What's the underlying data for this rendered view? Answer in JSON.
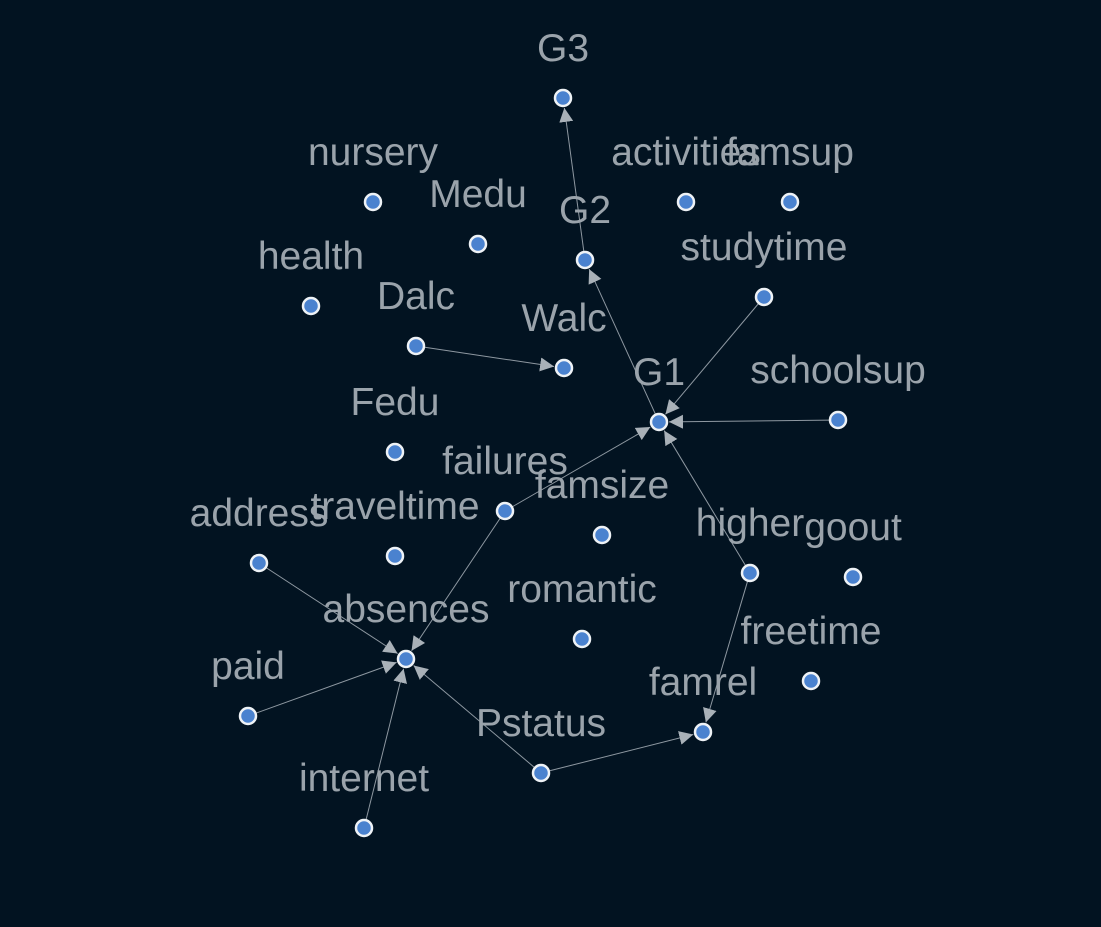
{
  "graph": {
    "colors": {
      "background": "#021321",
      "label": "#9aa3ab",
      "edge": "#8e98a1",
      "node_fill": "#4a82cf",
      "node_stroke": "#eef2f6"
    },
    "nodes": [
      {
        "id": "G3",
        "label": "G3"
      },
      {
        "id": "nursery",
        "label": "nursery"
      },
      {
        "id": "activities",
        "label": "activities"
      },
      {
        "id": "famsup",
        "label": "famsup"
      },
      {
        "id": "Medu",
        "label": "Medu"
      },
      {
        "id": "G2",
        "label": "G2"
      },
      {
        "id": "health",
        "label": "health"
      },
      {
        "id": "studytime",
        "label": "studytime"
      },
      {
        "id": "Dalc",
        "label": "Dalc"
      },
      {
        "id": "Walc",
        "label": "Walc"
      },
      {
        "id": "G1",
        "label": "G1"
      },
      {
        "id": "schoolsup",
        "label": "schoolsup"
      },
      {
        "id": "Fedu",
        "label": "Fedu"
      },
      {
        "id": "failures",
        "label": "failures"
      },
      {
        "id": "famsize",
        "label": "famsize"
      },
      {
        "id": "address",
        "label": "address"
      },
      {
        "id": "traveltime",
        "label": "traveltime"
      },
      {
        "id": "higher",
        "label": "higher"
      },
      {
        "id": "goout",
        "label": "goout"
      },
      {
        "id": "romantic",
        "label": "romantic"
      },
      {
        "id": "absences",
        "label": "absences"
      },
      {
        "id": "freetime",
        "label": "freetime"
      },
      {
        "id": "paid",
        "label": "paid"
      },
      {
        "id": "famrel",
        "label": "famrel"
      },
      {
        "id": "Pstatus",
        "label": "Pstatus"
      },
      {
        "id": "internet",
        "label": "internet"
      }
    ],
    "edges": [
      {
        "from": "G2",
        "to": "G3"
      },
      {
        "from": "G1",
        "to": "G2"
      },
      {
        "from": "studytime",
        "to": "G1"
      },
      {
        "from": "schoolsup",
        "to": "G1"
      },
      {
        "from": "failures",
        "to": "G1"
      },
      {
        "from": "higher",
        "to": "G1"
      },
      {
        "from": "Dalc",
        "to": "Walc"
      },
      {
        "from": "failures",
        "to": "absences"
      },
      {
        "from": "address",
        "to": "absences"
      },
      {
        "from": "paid",
        "to": "absences"
      },
      {
        "from": "internet",
        "to": "absences"
      },
      {
        "from": "Pstatus",
        "to": "absences"
      },
      {
        "from": "Pstatus",
        "to": "famrel"
      },
      {
        "from": "higher",
        "to": "famrel"
      }
    ]
  }
}
